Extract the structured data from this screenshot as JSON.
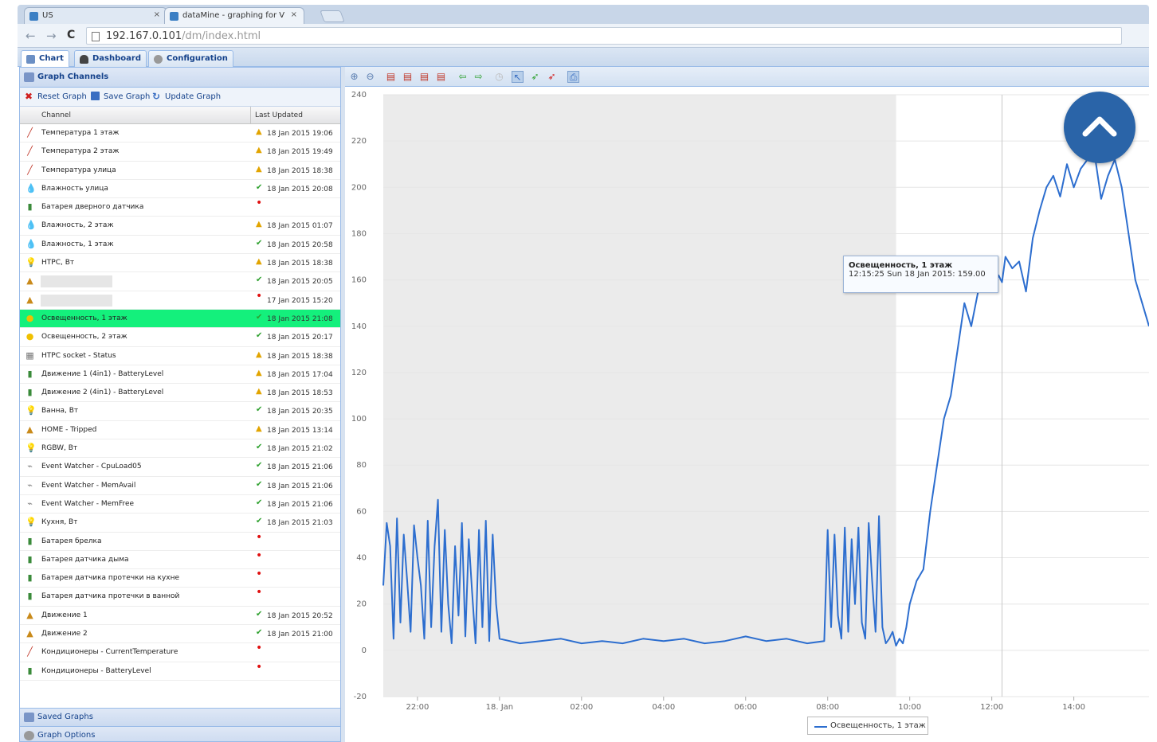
{
  "browser": {
    "tabs": [
      {
        "label": "US"
      },
      {
        "label": "dataMine - graphing for V"
      }
    ],
    "close_glyph": "×",
    "url_main": "192.167.0.101",
    "url_rest": "/dm/index.html",
    "back_glyph": "←",
    "forward_glyph": "→",
    "reload_glyph": "C"
  },
  "app_tabs": [
    {
      "label": "Chart",
      "icon": "chart-icon"
    },
    {
      "label": "Dashboard",
      "icon": "car-icon"
    },
    {
      "label": "Configuration",
      "icon": "gear-icon"
    }
  ],
  "panel": {
    "title": "Graph Channels",
    "toolbar": {
      "reset": "Reset Graph",
      "save": "Save Graph",
      "update": "Update Graph"
    },
    "columns": {
      "channel": "Channel",
      "last_updated": "Last Updated"
    },
    "footer1": "Saved Graphs",
    "footer2": "Graph Options"
  },
  "channels": [
    {
      "name": "Температура 1 этаж",
      "status": "warn",
      "date": "18 Jan 2015 19:06",
      "icon": "thermometer-icon"
    },
    {
      "name": "Температура 2 этаж",
      "status": "warn",
      "date": "18 Jan 2015 19:49",
      "icon": "thermometer-icon"
    },
    {
      "name": "Температура улица",
      "status": "warn",
      "date": "18 Jan 2015 18:38",
      "icon": "thermometer-icon"
    },
    {
      "name": "Влажность улица",
      "status": "ok",
      "date": "18 Jan 2015 20:08",
      "icon": "droplet-icon"
    },
    {
      "name": "Батарея дверного датчика",
      "status": "err",
      "date": "",
      "icon": "battery-icon"
    },
    {
      "name": "Влажность, 2 этаж",
      "status": "warn",
      "date": "18 Jan 2015 01:07",
      "icon": "droplet-icon"
    },
    {
      "name": "Влажность, 1 этаж",
      "status": "ok",
      "date": "18 Jan 2015 20:58",
      "icon": "droplet-icon"
    },
    {
      "name": "HTPC, Вт",
      "status": "warn",
      "date": "18 Jan 2015 18:38",
      "icon": "bulb-icon"
    },
    {
      "name": "",
      "status": "ok",
      "date": "18 Jan 2015 20:05",
      "icon": "lock-icon"
    },
    {
      "name": "",
      "status": "err",
      "date": "17 Jan 2015 15:20",
      "icon": "lock-icon"
    },
    {
      "name": "Освещенность, 1 этаж",
      "status": "ok",
      "date": "18 Jan 2015 21:08",
      "icon": "sun-icon",
      "selected": true
    },
    {
      "name": "Освещенность, 2 этаж",
      "status": "ok",
      "date": "18 Jan 2015 20:17",
      "icon": "sun-icon"
    },
    {
      "name": "HTPC socket - Status",
      "status": "warn",
      "date": "18 Jan 2015 18:38",
      "icon": "socket-icon"
    },
    {
      "name": "Движение 1 (4in1) - BatteryLevel",
      "status": "warn",
      "date": "18 Jan 2015 17:04",
      "icon": "battery-icon"
    },
    {
      "name": "Движение 2 (4in1) - BatteryLevel",
      "status": "warn",
      "date": "18 Jan 2015 18:53",
      "icon": "battery-icon"
    },
    {
      "name": "Ванна, Вт",
      "status": "ok",
      "date": "18 Jan 2015 20:35",
      "icon": "bulb-icon"
    },
    {
      "name": "HOME - Tripped",
      "status": "warn",
      "date": "18 Jan 2015 13:14",
      "icon": "lock-icon"
    },
    {
      "name": "RGBW, Вт",
      "status": "ok",
      "date": "18 Jan 2015 21:02",
      "icon": "bulb-icon"
    },
    {
      "name": "Event Watcher - CpuLoad05",
      "status": "ok",
      "date": "18 Jan 2015 21:06",
      "icon": "watcher-icon"
    },
    {
      "name": "Event Watcher - MemAvail",
      "status": "ok",
      "date": "18 Jan 2015 21:06",
      "icon": "watcher-icon"
    },
    {
      "name": "Event Watcher - MemFree",
      "status": "ok",
      "date": "18 Jan 2015 21:06",
      "icon": "watcher-icon"
    },
    {
      "name": "Кухня, Вт",
      "status": "ok",
      "date": "18 Jan 2015 21:03",
      "icon": "bulb-icon"
    },
    {
      "name": "Батарея брелка",
      "status": "err",
      "date": "",
      "icon": "battery-icon"
    },
    {
      "name": "Батарея датчика дыма",
      "status": "err",
      "date": "",
      "icon": "battery-icon"
    },
    {
      "name": "Батарея датчика протечки на кухне",
      "status": "err",
      "date": "",
      "icon": "battery-icon"
    },
    {
      "name": "Батарея датчика протечки в ванной",
      "status": "err",
      "date": "",
      "icon": "battery-icon"
    },
    {
      "name": "Движение 1",
      "status": "ok",
      "date": "18 Jan 2015 20:52",
      "icon": "lock-icon"
    },
    {
      "name": "Движение 2",
      "status": "ok",
      "date": "18 Jan 2015 21:00",
      "icon": "lock-icon"
    },
    {
      "name": "Кондиционеры - CurrentTemperature",
      "status": "err",
      "date": "",
      "icon": "thermometer-icon"
    },
    {
      "name": "Кондиционеры - BatteryLevel",
      "status": "err",
      "date": "",
      "icon": "battery-icon"
    }
  ],
  "status_glyphs": {
    "ok": "✔",
    "warn": "▲",
    "err": "•"
  },
  "icon_glyphs": {
    "thermometer-icon": "╱",
    "droplet-icon": "💧",
    "battery-icon": "▮",
    "bulb-icon": "💡",
    "lock-icon": "▲",
    "sun-icon": "●",
    "socket-icon": "▦",
    "watcher-icon": "⌁"
  },
  "icon_colors": {
    "thermometer-icon": "#c0392b",
    "droplet-icon": "#7fa8d8",
    "battery-icon": "#3a8a3a",
    "bulb-icon": "#e2b400",
    "lock-icon": "#c98a1a",
    "sun-icon": "#f0c000",
    "socket-icon": "#777777",
    "watcher-icon": "#888888"
  },
  "tooltip": {
    "title": "Освещенность, 1 этаж",
    "value_line": "12:15:25 Sun 18 Jan 2015: 159.00"
  },
  "colors": {
    "series": "#2d6ecf",
    "selected_row": "#14f07c",
    "accent": "#2a64a8"
  },
  "chart_data": {
    "type": "line",
    "title": "",
    "xlabel": "",
    "ylabel": "",
    "ylim": [
      -20,
      240
    ],
    "yticks": [
      -20,
      0,
      20,
      40,
      60,
      80,
      100,
      120,
      140,
      160,
      180,
      200,
      220,
      240
    ],
    "xlim": [
      "2015-01-17 21:10",
      "2015-01-18 15:50"
    ],
    "xticks": [
      {
        "t": "2015-01-17 22:00",
        "label": "22:00"
      },
      {
        "t": "2015-01-18 00:00",
        "label": "18. Jan"
      },
      {
        "t": "2015-01-18 02:00",
        "label": "02:00"
      },
      {
        "t": "2015-01-18 04:00",
        "label": "04:00"
      },
      {
        "t": "2015-01-18 06:00",
        "label": "06:00"
      },
      {
        "t": "2015-01-18 08:00",
        "label": "08:00"
      },
      {
        "t": "2015-01-18 10:00",
        "label": "10:00"
      },
      {
        "t": "2015-01-18 12:00",
        "label": "12:00"
      },
      {
        "t": "2015-01-18 14:00",
        "label": "14:00"
      }
    ],
    "night_band": [
      "2015-01-17 21:10",
      "2015-01-18 09:40"
    ],
    "crosshair": "2015-01-18 12:15",
    "legend": "top-bottom-center",
    "series": [
      {
        "name": "Освещенность, 1 этаж",
        "x": [
          "2015-01-17 21:10",
          "2015-01-17 21:15",
          "2015-01-17 21:20",
          "2015-01-17 21:25",
          "2015-01-17 21:30",
          "2015-01-17 21:35",
          "2015-01-17 21:40",
          "2015-01-17 21:45",
          "2015-01-17 21:50",
          "2015-01-17 21:55",
          "2015-01-17 22:00",
          "2015-01-17 22:05",
          "2015-01-17 22:10",
          "2015-01-17 22:15",
          "2015-01-17 22:20",
          "2015-01-17 22:25",
          "2015-01-17 22:30",
          "2015-01-17 22:35",
          "2015-01-17 22:40",
          "2015-01-17 22:45",
          "2015-01-17 22:50",
          "2015-01-17 22:55",
          "2015-01-17 23:00",
          "2015-01-17 23:05",
          "2015-01-17 23:10",
          "2015-01-17 23:15",
          "2015-01-17 23:20",
          "2015-01-17 23:25",
          "2015-01-17 23:30",
          "2015-01-17 23:35",
          "2015-01-17 23:40",
          "2015-01-17 23:45",
          "2015-01-17 23:50",
          "2015-01-17 23:55",
          "2015-01-18 00:00",
          "2015-01-18 00:30",
          "2015-01-18 01:00",
          "2015-01-18 01:30",
          "2015-01-18 02:00",
          "2015-01-18 02:30",
          "2015-01-18 03:00",
          "2015-01-18 03:30",
          "2015-01-18 04:00",
          "2015-01-18 04:30",
          "2015-01-18 05:00",
          "2015-01-18 05:30",
          "2015-01-18 06:00",
          "2015-01-18 06:30",
          "2015-01-18 07:00",
          "2015-01-18 07:30",
          "2015-01-18 07:55",
          "2015-01-18 08:00",
          "2015-01-18 08:05",
          "2015-01-18 08:10",
          "2015-01-18 08:15",
          "2015-01-18 08:20",
          "2015-01-18 08:25",
          "2015-01-18 08:30",
          "2015-01-18 08:35",
          "2015-01-18 08:40",
          "2015-01-18 08:45",
          "2015-01-18 08:50",
          "2015-01-18 08:55",
          "2015-01-18 09:00",
          "2015-01-18 09:05",
          "2015-01-18 09:10",
          "2015-01-18 09:15",
          "2015-01-18 09:20",
          "2015-01-18 09:25",
          "2015-01-18 09:30",
          "2015-01-18 09:35",
          "2015-01-18 09:40",
          "2015-01-18 09:45",
          "2015-01-18 09:50",
          "2015-01-18 09:55",
          "2015-01-18 10:00",
          "2015-01-18 10:10",
          "2015-01-18 10:20",
          "2015-01-18 10:30",
          "2015-01-18 10:40",
          "2015-01-18 10:50",
          "2015-01-18 11:00",
          "2015-01-18 11:10",
          "2015-01-18 11:20",
          "2015-01-18 11:30",
          "2015-01-18 11:40",
          "2015-01-18 11:50",
          "2015-01-18 12:00",
          "2015-01-18 12:10",
          "2015-01-18 12:15",
          "2015-01-18 12:20",
          "2015-01-18 12:30",
          "2015-01-18 12:40",
          "2015-01-18 12:50",
          "2015-01-18 13:00",
          "2015-01-18 13:10",
          "2015-01-18 13:20",
          "2015-01-18 13:30",
          "2015-01-18 13:40",
          "2015-01-18 13:50",
          "2015-01-18 14:00",
          "2015-01-18 14:10",
          "2015-01-18 14:20",
          "2015-01-18 14:30",
          "2015-01-18 14:40",
          "2015-01-18 14:50",
          "2015-01-18 15:00",
          "2015-01-18 15:10",
          "2015-01-18 15:20",
          "2015-01-18 15:30",
          "2015-01-18 15:40",
          "2015-01-18 15:50"
        ],
        "values": [
          28,
          55,
          45,
          5,
          57,
          12,
          50,
          30,
          8,
          54,
          40,
          28,
          5,
          56,
          10,
          45,
          65,
          8,
          52,
          20,
          3,
          45,
          15,
          55,
          6,
          48,
          25,
          3,
          52,
          10,
          56,
          4,
          50,
          20,
          5,
          3,
          4,
          5,
          3,
          4,
          3,
          5,
          4,
          5,
          3,
          4,
          6,
          4,
          5,
          3,
          4,
          52,
          10,
          50,
          15,
          5,
          53,
          8,
          48,
          20,
          53,
          12,
          5,
          55,
          30,
          8,
          58,
          10,
          3,
          5,
          8,
          2,
          5,
          3,
          10,
          20,
          30,
          35,
          60,
          80,
          100,
          110,
          130,
          150,
          140,
          155,
          163,
          155,
          162,
          159,
          170,
          165,
          168,
          155,
          178,
          190,
          200,
          205,
          196,
          210,
          200,
          208,
          212,
          215,
          195,
          205,
          212,
          200,
          180,
          160,
          150,
          140
        ]
      }
    ]
  }
}
